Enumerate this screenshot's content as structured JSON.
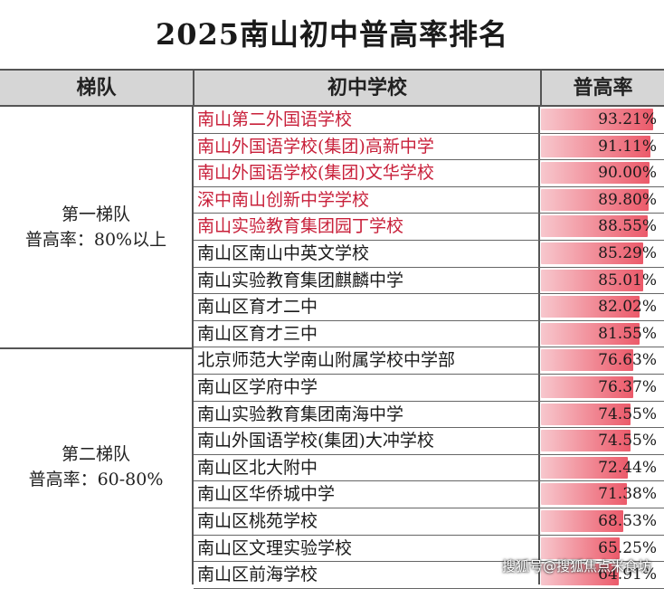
{
  "title": "2025南山初中普高率排名",
  "headers": {
    "tier": "梯队",
    "school": "初中学校",
    "rate": "普高率"
  },
  "tiers": [
    {
      "name": "第一梯队",
      "range": "普高率：80%以上"
    },
    {
      "name": "第二梯队",
      "range": "普高率：60-80%"
    }
  ],
  "colors": {
    "highlight_text": "#c8203a",
    "bar_light": "#f7c7cd",
    "bar_dark": "#ec5a6a",
    "header_bg": "#d6d6d6"
  },
  "rows": [
    {
      "school": "南山第二外国语学校",
      "rate": "93.21%",
      "value": 93.21,
      "highlight": true
    },
    {
      "school": "南山外国语学校(集团)高新中学",
      "rate": "91.11%",
      "value": 91.11,
      "highlight": true
    },
    {
      "school": "南山外国语学校(集团)文华学校",
      "rate": "90.00%",
      "value": 90.0,
      "highlight": true
    },
    {
      "school": "深中南山创新中学学校",
      "rate": "89.80%",
      "value": 89.8,
      "highlight": true
    },
    {
      "school": "南山实验教育集团园丁学校",
      "rate": "88.55%",
      "value": 88.55,
      "highlight": true
    },
    {
      "school": "南山区南山中英文学校",
      "rate": "85.29%",
      "value": 85.29,
      "highlight": false
    },
    {
      "school": "南山实验教育集团麒麟中学",
      "rate": "85.01%",
      "value": 85.01,
      "highlight": false
    },
    {
      "school": "南山区育才二中",
      "rate": "82.02%",
      "value": 82.02,
      "highlight": false
    },
    {
      "school": "南山区育才三中",
      "rate": "81.55%",
      "value": 81.55,
      "highlight": false
    },
    {
      "school": "北京师范大学南山附属学校中学部",
      "rate": "76.63%",
      "value": 76.63,
      "highlight": false
    },
    {
      "school": "南山区学府中学",
      "rate": "76.37%",
      "value": 76.37,
      "highlight": false
    },
    {
      "school": "南山实验教育集团南海中学",
      "rate": "74.55%",
      "value": 74.55,
      "highlight": false
    },
    {
      "school": "南山外国语学校(集团)大冲学校",
      "rate": "74.55%",
      "value": 74.55,
      "highlight": false
    },
    {
      "school": "南山区北大附中",
      "rate": "72.44%",
      "value": 72.44,
      "highlight": false
    },
    {
      "school": "南山区华侨城中学",
      "rate": "71.38%",
      "value": 71.38,
      "highlight": false
    },
    {
      "school": "南山区桃苑学校",
      "rate": "68.53%",
      "value": 68.53,
      "highlight": false
    },
    {
      "school": "南山区文理实验学校",
      "rate": "65.25%",
      "value": 65.25,
      "highlight": false
    },
    {
      "school": "南山区前海学校",
      "rate": "64.91%",
      "value": 64.91,
      "highlight": false
    }
  ],
  "watermark": "搜狐号@搜狐焦点米食坊"
}
